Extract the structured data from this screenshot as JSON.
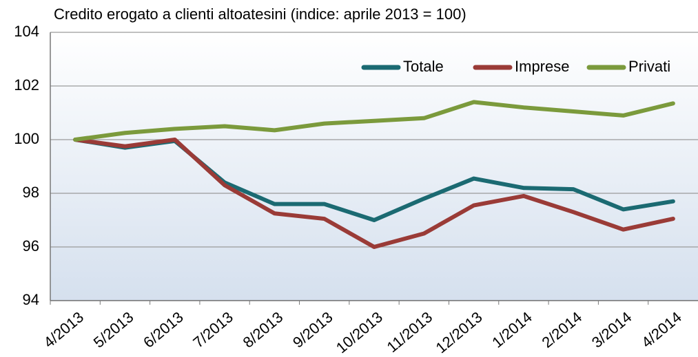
{
  "chart_data": {
    "type": "line",
    "title": "Credito erogato a clienti altoatesini (indice: aprile 2013 = 100)",
    "categories": [
      "4/2013",
      "5/2013",
      "6/2013",
      "7/2013",
      "8/2013",
      "9/2013",
      "10/2013",
      "11/2013",
      "12/2013",
      "1/2014",
      "2/2014",
      "3/2014",
      "4/2014"
    ],
    "series": [
      {
        "name": "Totale",
        "color": "#1b6a72",
        "values": [
          100,
          99.7,
          99.95,
          98.4,
          97.6,
          97.6,
          97.0,
          97.8,
          98.55,
          98.2,
          98.15,
          97.4,
          97.7
        ]
      },
      {
        "name": "Imprese",
        "color": "#9a3b37",
        "values": [
          100,
          99.75,
          100.0,
          98.3,
          97.25,
          97.05,
          96.0,
          96.5,
          97.55,
          97.9,
          97.3,
          96.65,
          97.05
        ]
      },
      {
        "name": "Privati",
        "color": "#7b9a3c",
        "values": [
          100,
          100.25,
          100.4,
          100.5,
          100.35,
          100.6,
          100.7,
          100.8,
          101.4,
          101.2,
          101.05,
          100.9,
          101.35
        ]
      }
    ],
    "ylim": [
      94,
      104
    ],
    "yticks": [
      94,
      96,
      98,
      100,
      102,
      104
    ],
    "grid": true,
    "legend": "upper right"
  }
}
